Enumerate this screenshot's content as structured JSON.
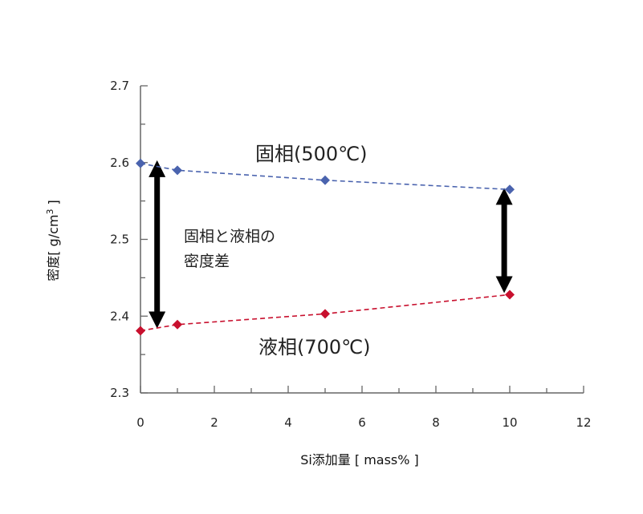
{
  "chart_data": {
    "type": "scatter",
    "title": "",
    "xlabel": "Si添加量 [ mass% ]",
    "ylabel_main": "密度[ g/cm",
    "ylabel_sup": "3",
    "ylabel_end": " ]",
    "xlim": [
      0,
      12
    ],
    "ylim": [
      2.3,
      2.7
    ],
    "x_ticks": [
      0,
      2,
      4,
      6,
      8,
      10,
      12
    ],
    "x_tick_labels": [
      "0",
      "2",
      "4",
      "6",
      "8",
      "10",
      "12"
    ],
    "y_ticks": [
      2.3,
      2.4,
      2.5,
      2.6,
      2.7
    ],
    "y_tick_labels": [
      "2.3",
      "2.4",
      "2.5",
      "2.6",
      "2.7"
    ],
    "grid": false,
    "series": [
      {
        "name": "固相(500℃)",
        "color": "#4a63ae",
        "marker": "diamond",
        "line": "dashed",
        "points": [
          {
            "x": 0,
            "y": 2.599
          },
          {
            "x": 1,
            "y": 2.59
          },
          {
            "x": 5,
            "y": 2.577
          },
          {
            "x": 10,
            "y": 2.565
          }
        ]
      },
      {
        "name": "液相(700℃)",
        "color": "#c8102e",
        "marker": "diamond",
        "line": "dashed",
        "points": [
          {
            "x": 0,
            "y": 2.381
          },
          {
            "x": 1,
            "y": 2.389
          },
          {
            "x": 5,
            "y": 2.403
          },
          {
            "x": 10,
            "y": 2.428
          }
        ]
      }
    ],
    "annotations": [
      {
        "text_lines": [
          "固相と液相の",
          "密度差"
        ]
      }
    ],
    "arrows": [
      {
        "x": 0.45,
        "y_from": 2.395,
        "y_to": 2.592
      },
      {
        "x": 9.85,
        "y_from": 2.441,
        "y_to": 2.556
      }
    ]
  }
}
